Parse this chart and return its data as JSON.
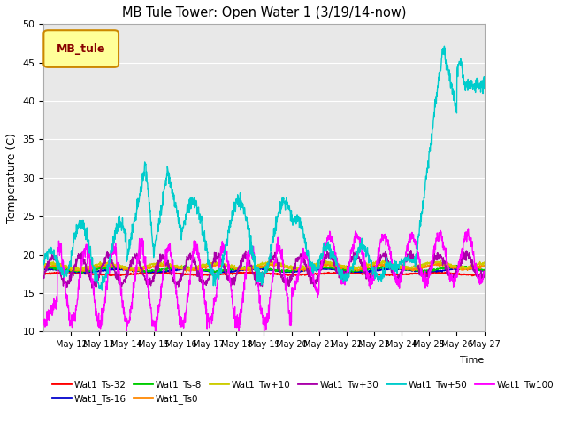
{
  "title": "MB Tule Tower: Open Water 1 (3/19/14-now)",
  "xlabel": "Time",
  "ylabel": "Temperature (C)",
  "ylim": [
    10,
    50
  ],
  "yticks": [
    10,
    15,
    20,
    25,
    30,
    35,
    40,
    45,
    50
  ],
  "bg_color": "#e8e8e8",
  "series": {
    "Wat1_Ts-32": {
      "color": "#ff0000",
      "lw": 1.0
    },
    "Wat1_Ts-16": {
      "color": "#0000cc",
      "lw": 1.0
    },
    "Wat1_Ts-8": {
      "color": "#00cc00",
      "lw": 1.0
    },
    "Wat1_Ts0": {
      "color": "#ff8800",
      "lw": 1.0
    },
    "Wat1_Tw+10": {
      "color": "#cccc00",
      "lw": 1.0
    },
    "Wat1_Tw+30": {
      "color": "#aa00aa",
      "lw": 1.0
    },
    "Wat1_Tw+50": {
      "color": "#00cccc",
      "lw": 1.0
    },
    "Wat1_Tw100": {
      "color": "#ff00ff",
      "lw": 1.0
    }
  },
  "legend_box": {
    "label": "MB_tule",
    "facecolor": "#ffff99",
    "edgecolor": "#cc8800",
    "textcolor": "#880000"
  },
  "xtick_labels": [
    "May 12",
    "May 13",
    "May 14",
    "May 15",
    "May 16",
    "May 17",
    "May 18",
    "May 19",
    "May 20",
    "May 21",
    "May 22",
    "May 23",
    "May 24",
    "May 25",
    "May 26",
    "May 27"
  ]
}
